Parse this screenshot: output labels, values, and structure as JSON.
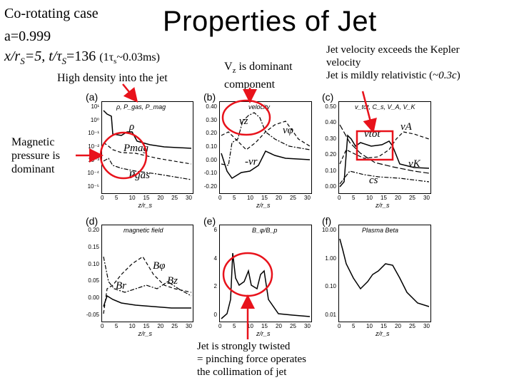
{
  "header": {
    "case": "Co-rotating case",
    "spin": "a=0.999",
    "position_prefix": "x/r",
    "position_sub": "S",
    "position_mid": "=5, t/τ",
    "time_sub": "S",
    "time_eq": "=136",
    "unit_text": "(1τ",
    "unit_sub": "s",
    "unit_end": "~0.03ms)",
    "title": "Properties of Jet"
  },
  "notes": {
    "density": "High density into the jet",
    "vz_main": "V",
    "vz_sub": "z",
    "vz_rest": " is dominant",
    "vz_line2": "component",
    "kepler_1": "Jet velocity exceeds the Kepler",
    "kepler_2": "velocity",
    "kepler_3a": "Jet is mildly relativistic (~",
    "kepler_3b": "0.3c",
    "kepler_3c": ")",
    "magnetic_1": "Magnetic",
    "magnetic_2": "pressure is",
    "magnetic_3": "dominant",
    "twist_1": "Jet is strongly twisted",
    "twist_2": "= pinching force operates",
    "twist_3": "the collimation of jet"
  },
  "panels": {
    "a": {
      "label": "(a)",
      "title": "ρ, P_gas, P_mag",
      "ticks": [
        "10¹",
        "10⁰",
        "10⁻¹",
        "10⁻²",
        "10⁻³",
        "10⁻⁴",
        "10⁻⁵"
      ],
      "ann": [
        "ρ",
        "Pmag",
        "Pgas"
      ]
    },
    "b": {
      "label": "(b)",
      "title": "velocity",
      "ticks": [
        "0.40",
        "0.30",
        "0.20",
        "0.10",
        "0.00",
        "-0.10",
        "-0.20"
      ],
      "ann": [
        "vz",
        "vφ",
        "-vr"
      ]
    },
    "c": {
      "label": "(c)",
      "title": "v_tot, C_s, V_A, V_K",
      "ticks": [
        "0.50",
        "0.40",
        "0.30",
        "0.20",
        "0.10",
        "0.00"
      ],
      "ann": [
        "vtot",
        "vA",
        "vK",
        "cs"
      ]
    },
    "d": {
      "label": "(d)",
      "title": "magnetic field",
      "ticks": [
        "0.20",
        "0.15",
        "0.10",
        "0.05",
        "0.00",
        "-0.05"
      ],
      "ann": [
        "Bφ",
        "Br",
        "Bz"
      ]
    },
    "e": {
      "label": "(e)",
      "title": "B_φ/B_p",
      "ticks": [
        "6",
        "4",
        "2",
        "0"
      ],
      "ann": []
    },
    "f": {
      "label": "(f)",
      "title": "Plasma Beta",
      "ticks": [
        "10.00",
        "1.00",
        "0.10",
        "0.01"
      ],
      "ann": []
    }
  },
  "x_axis": {
    "ticks": [
      "0",
      "5",
      "10",
      "15",
      "20",
      "25",
      "30"
    ],
    "label": "z/r_s"
  },
  "colors": {
    "highlight": "#e8121b",
    "line": "#000000"
  }
}
